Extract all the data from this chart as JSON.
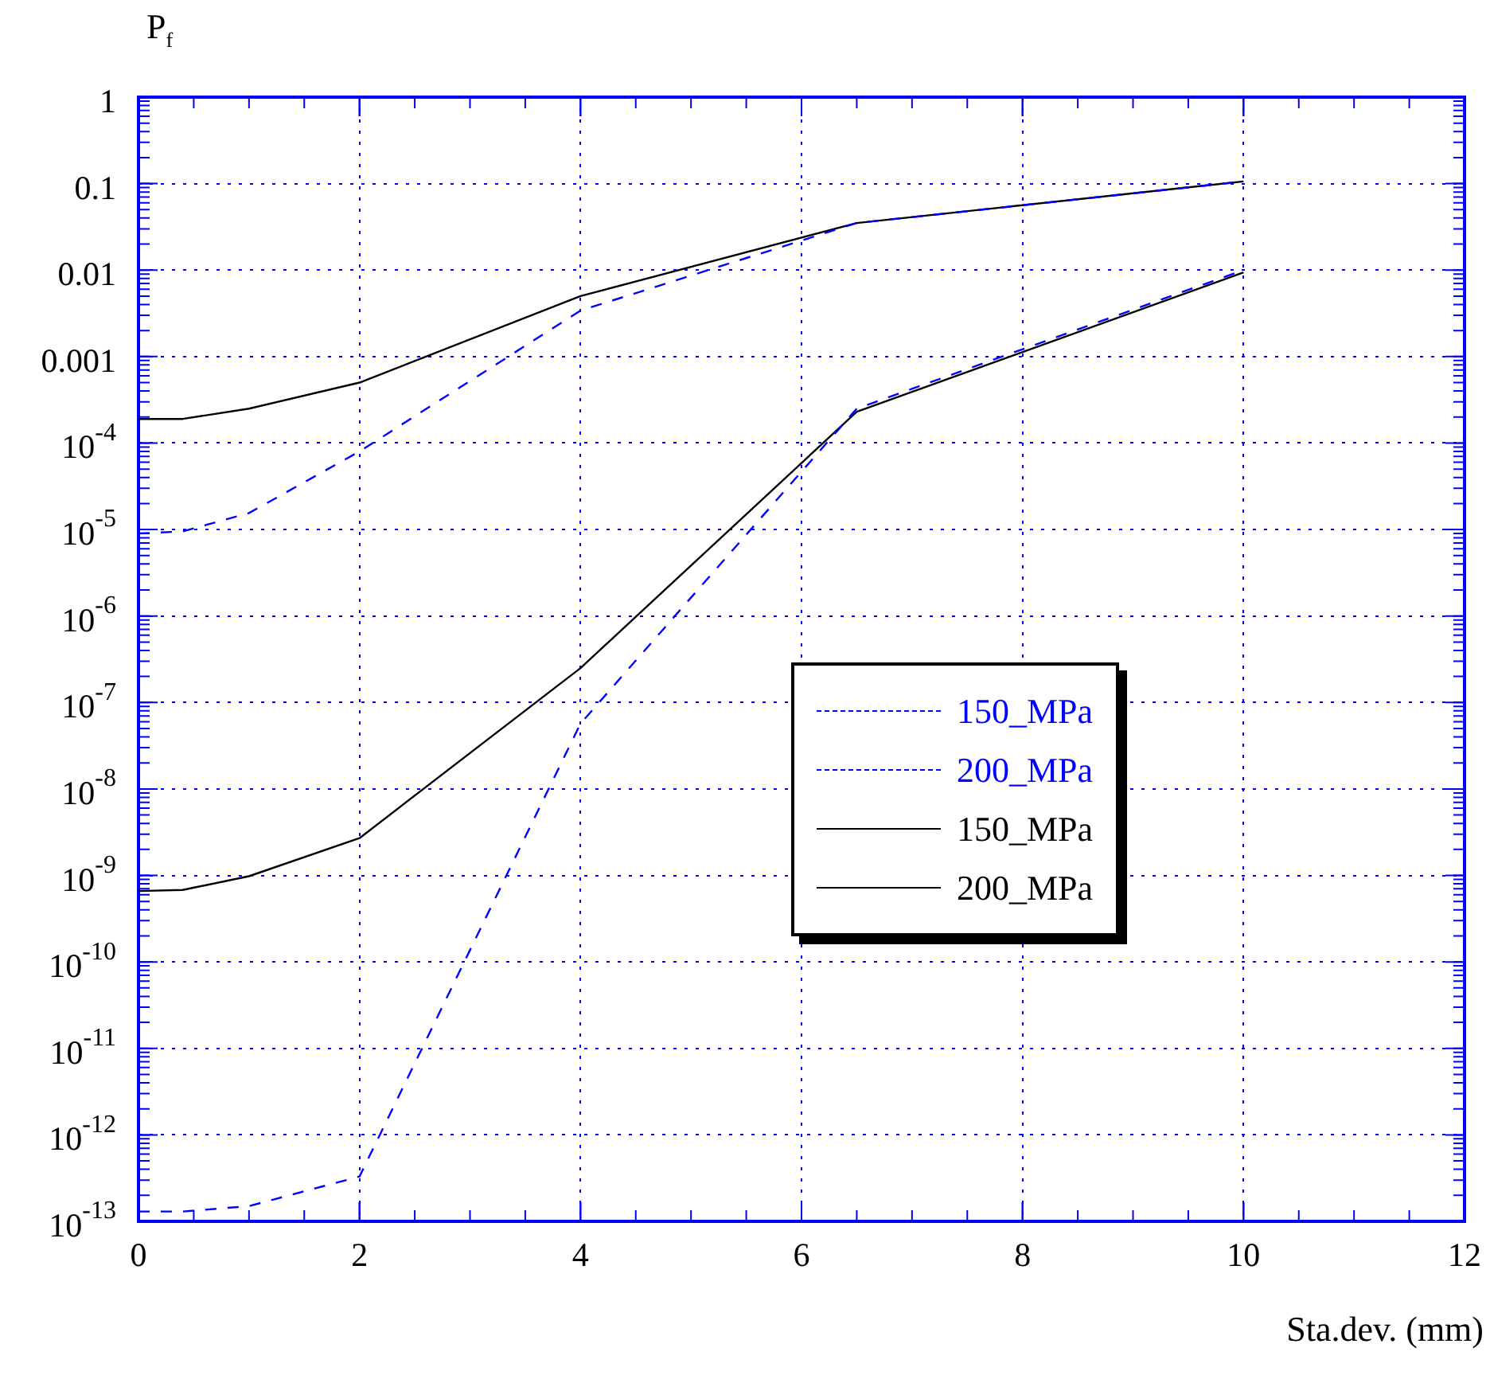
{
  "chart_data": {
    "type": "line",
    "xlabel": "Sta.dev. (mm)",
    "ylabel": "P$_{f}$",
    "xlim": [
      0,
      12
    ],
    "xticks": [
      0,
      2,
      4,
      6,
      8,
      10,
      12
    ],
    "ylim": [
      1e-13,
      1
    ],
    "log": "y",
    "yticks": [
      1,
      0.1,
      0.01,
      0.001,
      {
        "value": 0.0001,
        "label": "10$^{-4}$"
      },
      {
        "value": 1e-05,
        "label": "10$^{-5}$"
      },
      {
        "value": 1e-06,
        "label": "10$^{-6}$"
      },
      {
        "value": 1e-07,
        "label": "10$^{-7}$"
      },
      {
        "value": 1e-08,
        "label": "10$^{-8}$"
      },
      {
        "value": 1e-09,
        "label": "10$^{-9}$"
      },
      {
        "value": 1e-10,
        "label": "10$^{-10}$"
      },
      {
        "value": 1e-11,
        "label": "10$^{-11}$"
      },
      {
        "value": 1e-12,
        "label": "10$^{-12}$"
      },
      {
        "value": 1e-13,
        "label": "10$^{-13}$"
      }
    ],
    "grid": true,
    "legend": "right",
    "marker": "none",
    "series": [
      {
        "name": "150_MPa",
        "color": "#0000ff",
        "line_style": "dashed",
        "x": [
          0,
          0.4,
          1,
          2,
          4,
          6.5,
          10
        ],
        "values": [
          1.3e-13,
          1.3e-13,
          1.5e-13,
          3.3e-13,
          5.7e-08,
          0.00025,
          0.01
        ]
      },
      {
        "name": "200_MPa",
        "color": "#0000ff",
        "line_style": "dashed",
        "x": [
          0,
          0.4,
          1,
          2,
          4,
          6.5,
          10
        ],
        "values": [
          9e-06,
          9.5e-06,
          1.55e-05,
          8e-05,
          0.0034,
          0.035,
          0.106
        ]
      },
      {
        "name": "150_MPa",
        "color": "#000000",
        "line_style": "solid",
        "x": [
          0,
          0.4,
          1,
          2,
          4,
          6.5,
          10
        ],
        "values": [
          6.6e-10,
          6.8e-10,
          9.8e-10,
          2.7e-09,
          2.5e-07,
          0.00023,
          0.0094
        ]
      },
      {
        "name": "200_MPa",
        "color": "#000000",
        "line_style": "solid",
        "x": [
          0,
          0.4,
          1,
          2,
          4,
          6.5,
          10
        ],
        "values": [
          0.00019,
          0.00019,
          0.00025,
          0.0005,
          0.005,
          0.035,
          0.106
        ]
      }
    ]
  }
}
